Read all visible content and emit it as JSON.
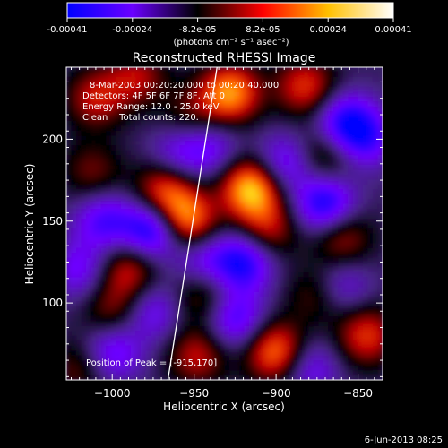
{
  "colorbar": {
    "tick_labels": [
      "-0.00041",
      "-0.00024",
      "-8.2e-05",
      "8.2e-05",
      "0.00024",
      "0.00041"
    ],
    "unit_label": "(photons cm⁻² s⁻¹ asec⁻²)",
    "colors": [
      "#0000ff",
      "#6a00ff",
      "#000000",
      "#ff0000",
      "#ffc000",
      "#ffffff"
    ]
  },
  "chart_data": {
    "type": "heatmap",
    "title": "Reconstructed RHESSI Image",
    "xlabel": "Heliocentric X (arcsec)",
    "ylabel": "Heliocentric Y (arcsec)",
    "xlim": [
      -1028,
      -835
    ],
    "ylim": [
      53,
      244
    ],
    "x_ticks": [
      -1000,
      -950,
      -900,
      -850
    ],
    "y_ticks": [
      100,
      150,
      200
    ],
    "x_tick_labels": [
      "−1000",
      "−950",
      "−900",
      "−850"
    ],
    "y_tick_labels": [
      "100",
      "150",
      "200"
    ],
    "annotations": [
      "8-Mar-2003 00:20:20.000 to 00:20:40.000",
      "Detectors: 4F 5F 6F 7F 8F, Att 0",
      "Energy Range: 12.0 - 25.0 keV",
      "Clean    Total counts: 220."
    ],
    "peak_label": "Position of Peak = [-915,170]",
    "peak": [
      -915,
      170
    ],
    "limb_line": [
      [
        -966,
        53
      ],
      [
        -936,
        244
      ]
    ],
    "blobs": [
      {
        "x": -1010,
        "y": 225,
        "v": 0.5
      },
      {
        "x": -1012,
        "y": 180,
        "v": 0.35
      },
      {
        "x": -990,
        "y": 120,
        "v": 0.55
      },
      {
        "x": -1000,
        "y": 95,
        "v": 0.4
      },
      {
        "x": -985,
        "y": 238,
        "v": 0.45
      },
      {
        "x": -968,
        "y": 168,
        "v": 0.7
      },
      {
        "x": -955,
        "y": 150,
        "v": 0.85
      },
      {
        "x": -952,
        "y": 215,
        "v": 0.3
      },
      {
        "x": -945,
        "y": 105,
        "v": 0.45
      },
      {
        "x": -948,
        "y": 68,
        "v": 0.5
      },
      {
        "x": -928,
        "y": 228,
        "v": 0.85
      },
      {
        "x": -915,
        "y": 170,
        "v": 1.0
      },
      {
        "x": -905,
        "y": 145,
        "v": 0.5
      },
      {
        "x": -900,
        "y": 70,
        "v": 0.8
      },
      {
        "x": -882,
        "y": 232,
        "v": 0.6
      },
      {
        "x": -870,
        "y": 190,
        "v": 0.45
      },
      {
        "x": -860,
        "y": 140,
        "v": 0.5
      },
      {
        "x": -845,
        "y": 80,
        "v": 0.6
      },
      {
        "x": -875,
        "y": 105,
        "v": 0.35
      },
      {
        "x": -1020,
        "y": 60,
        "v": 0.35
      },
      {
        "x": -1005,
        "y": 150,
        "v": -0.55
      },
      {
        "x": -975,
        "y": 145,
        "v": -0.9
      },
      {
        "x": -1000,
        "y": 70,
        "v": -0.55
      },
      {
        "x": -975,
        "y": 95,
        "v": -0.45
      },
      {
        "x": -960,
        "y": 190,
        "v": -0.4
      },
      {
        "x": -945,
        "y": 125,
        "v": -0.45
      },
      {
        "x": -940,
        "y": 195,
        "v": -0.4
      },
      {
        "x": -925,
        "y": 90,
        "v": -0.6
      },
      {
        "x": -920,
        "y": 125,
        "v": -0.75
      },
      {
        "x": -895,
        "y": 185,
        "v": -0.55
      },
      {
        "x": -870,
        "y": 160,
        "v": -0.8
      },
      {
        "x": -858,
        "y": 210,
        "v": -0.7
      },
      {
        "x": -845,
        "y": 200,
        "v": -0.5
      },
      {
        "x": -880,
        "y": 60,
        "v": -0.45
      },
      {
        "x": -1020,
        "y": 120,
        "v": -0.45
      },
      {
        "x": -860,
        "y": 110,
        "v": -0.4
      }
    ]
  },
  "footer": {
    "date_stamp": "6-Jun-2013 08:25"
  }
}
